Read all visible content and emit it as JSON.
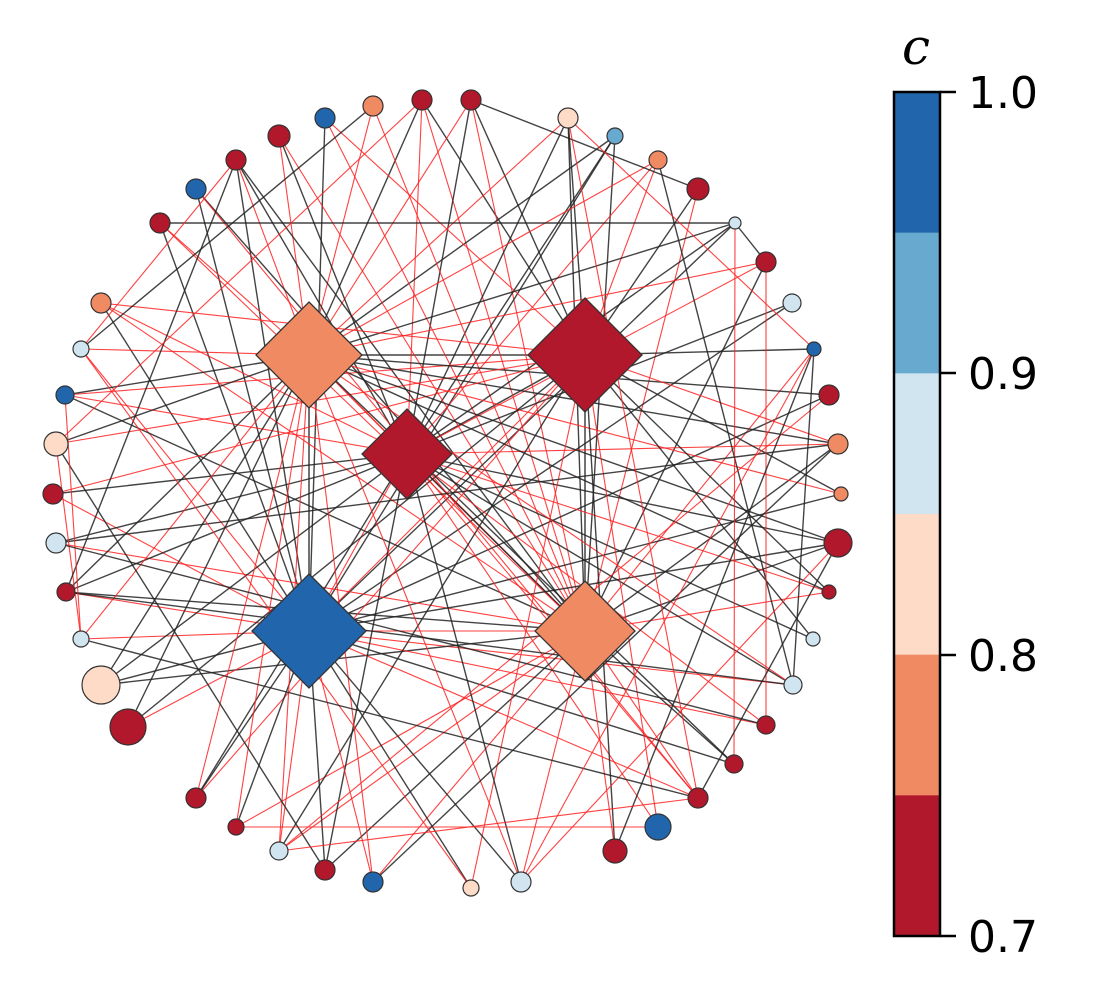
{
  "colorbar": {
    "title": "c",
    "ticks": [
      "1.0",
      "0.9",
      "0.8",
      "0.7"
    ],
    "bins": [
      {
        "color": "#2166ac"
      },
      {
        "color": "#67a9cf"
      },
      {
        "color": "#d1e5f0"
      },
      {
        "color": "#fddbc7"
      },
      {
        "color": "#ef8a62"
      },
      {
        "color": "#b2182b"
      }
    ]
  },
  "colors": {
    "edge_black": "#222222",
    "edge_red": "#ff2020",
    "node_outline": "#333333"
  },
  "hubs": [
    {
      "id": "hub-top-left",
      "color": "#ef8a62"
    },
    {
      "id": "hub-top-right",
      "color": "#b2182b"
    },
    {
      "id": "hub-center",
      "color": "#b2182b"
    },
    {
      "id": "hub-bottom-left",
      "color": "#2166ac"
    },
    {
      "id": "hub-bottom-right",
      "color": "#ef8a62"
    }
  ],
  "nodes": [
    {
      "color": "#b2182b"
    },
    {
      "color": "#b2182b"
    },
    {
      "color": "#fddbc7"
    },
    {
      "color": "#67a9cf"
    },
    {
      "color": "#ef8a62"
    },
    {
      "color": "#2166ac"
    },
    {
      "color": "#b2182b"
    },
    {
      "color": "#ef8a62"
    },
    {
      "color": "#b2182b"
    },
    {
      "color": "#b2182b"
    },
    {
      "color": "#2166ac"
    },
    {
      "color": "#d1e5f0"
    },
    {
      "color": "#b2182b"
    },
    {
      "color": "#b2182b"
    },
    {
      "color": "#ef8a62"
    },
    {
      "color": "#d1e5f0"
    },
    {
      "color": "#d1e5f0"
    },
    {
      "color": "#2166ac"
    },
    {
      "color": "#2166ac"
    },
    {
      "color": "#b2182b"
    },
    {
      "color": "#fddbc7"
    },
    {
      "color": "#ef8a62"
    },
    {
      "color": "#b2182b"
    },
    {
      "color": "#ef8a62"
    },
    {
      "color": "#d1e5f0"
    },
    {
      "color": "#b2182b"
    },
    {
      "color": "#b2182b"
    },
    {
      "color": "#b2182b"
    },
    {
      "color": "#d1e5f0"
    },
    {
      "color": "#d1e5f0"
    },
    {
      "color": "#d1e5f0"
    },
    {
      "color": "#fddbc7"
    },
    {
      "color": "#b2182b"
    },
    {
      "color": "#b2182b"
    },
    {
      "color": "#b2182b"
    },
    {
      "color": "#b2182b"
    },
    {
      "color": "#b2182b"
    },
    {
      "color": "#2166ac"
    },
    {
      "color": "#b2182b"
    },
    {
      "color": "#d1e5f0"
    },
    {
      "color": "#b2182b"
    },
    {
      "color": "#b2182b"
    },
    {
      "color": "#2166ac"
    },
    {
      "color": "#fddbc7"
    },
    {
      "color": "#d1e5f0"
    }
  ]
}
